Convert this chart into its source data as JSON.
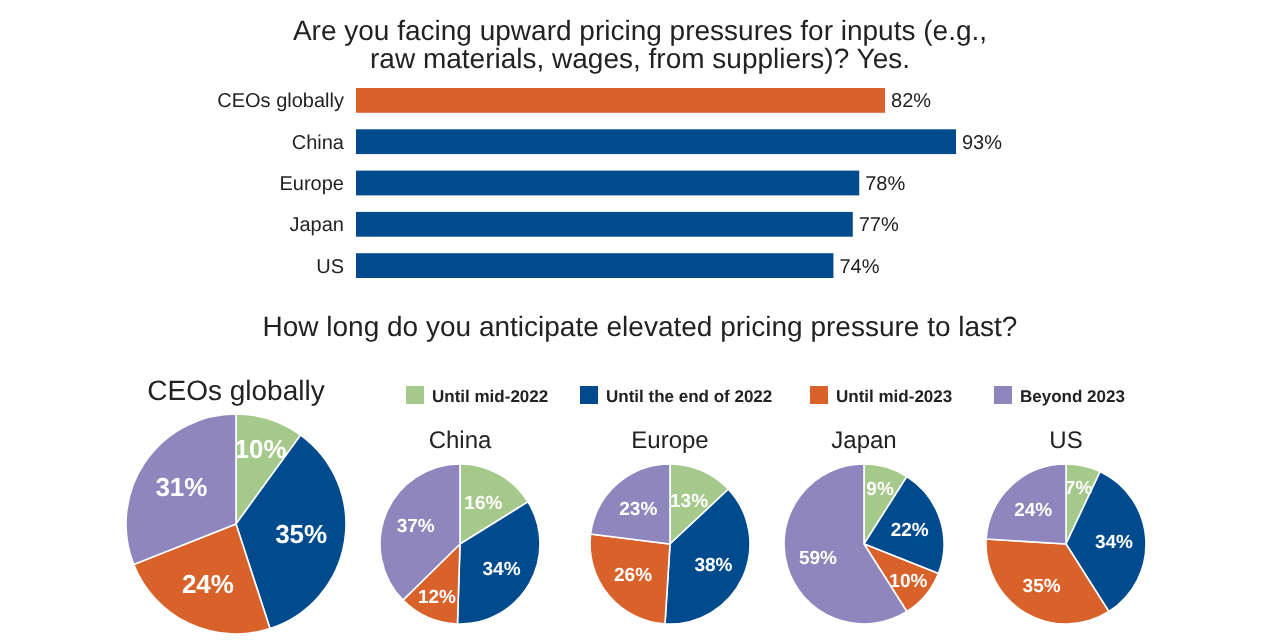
{
  "chart_data": [
    {
      "type": "bar",
      "orientation": "horizontal",
      "title": "Are you facing upward pricing pressures for inputs (e.g., raw materials, wages, from suppliers)? Yes.",
      "categories": [
        "CEOs globally",
        "China",
        "Europe",
        "Japan",
        "US"
      ],
      "values": [
        82,
        93,
        78,
        77,
        74
      ],
      "colors": [
        "#d9622b",
        "#004b8d",
        "#004b8d",
        "#004b8d",
        "#004b8d"
      ],
      "value_labels": [
        "82%",
        "93%",
        "78%",
        "77%",
        "74%"
      ]
    },
    {
      "type": "other",
      "title": "How long do you anticipate elevated pricing pressure to last?"
    },
    {
      "type": "pie",
      "title": "CEOs globally",
      "categories": [
        "Until mid-2022",
        "Until the end of 2022",
        "Until mid-2023",
        "Beyond 2023"
      ],
      "values": [
        10,
        35,
        24,
        31
      ],
      "colors": [
        "#a5c98a",
        "#004b8d",
        "#d9622b",
        "#8f86bd"
      ],
      "value_labels": [
        "10%",
        "35%",
        "24%",
        "31%"
      ],
      "legend": "top right"
    },
    {
      "type": "pie",
      "title": "China",
      "categories": [
        null,
        null,
        null,
        null
      ],
      "values": [
        16,
        34,
        12,
        37
      ],
      "colors": [
        "#a5c98a",
        "#004b8d",
        "#d9622b",
        "#8f86bd"
      ],
      "value_labels": [
        "16%",
        "34%",
        "12%",
        "37%"
      ]
    },
    {
      "type": "pie",
      "title": "Europe",
      "categories": [
        null,
        null,
        null,
        null
      ],
      "values": [
        13,
        38,
        26,
        23
      ],
      "colors": [
        "#a5c98a",
        "#004b8d",
        "#d9622b",
        "#8f86bd"
      ],
      "value_labels": [
        "13%",
        "38%",
        "26%",
        "23%"
      ]
    },
    {
      "type": "pie",
      "title": "Japan",
      "categories": [
        null,
        null,
        null,
        null
      ],
      "values": [
        9,
        22,
        10,
        59
      ],
      "colors": [
        "#a5c98a",
        "#004b8d",
        "#d9622b",
        "#8f86bd"
      ],
      "value_labels": [
        "9%",
        "22%",
        "10%",
        "59%"
      ]
    },
    {
      "type": "pie",
      "title": "US",
      "categories": [
        null,
        null,
        null,
        null
      ],
      "values": [
        7,
        34,
        35,
        24
      ],
      "colors": [
        "#a5c98a",
        "#004b8d",
        "#d9622b",
        "#8f86bd"
      ],
      "value_labels": [
        "7%",
        "34%",
        "35%",
        "24%"
      ]
    }
  ]
}
